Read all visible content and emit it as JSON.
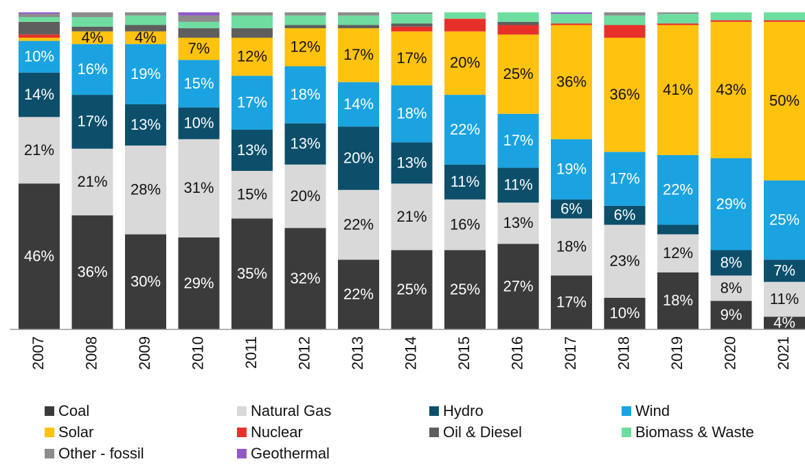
{
  "chart_data": {
    "type": "stacked_bar",
    "categories": [
      "2007",
      "2008",
      "2009",
      "2010",
      "2011",
      "2012",
      "2013",
      "2014",
      "2015",
      "2016",
      "2017",
      "2018",
      "2019",
      "2020",
      "2021"
    ],
    "ylim": [
      0,
      100
    ],
    "series": [
      {
        "name": "Coal",
        "color": "#3b3b3b",
        "values": [
          46,
          36,
          30,
          29,
          35,
          32,
          22,
          25,
          25,
          27,
          17,
          10,
          18,
          9,
          4
        ],
        "value_labels": [
          "46%",
          "36%",
          "30%",
          "29%",
          "35%",
          "32%",
          "22%",
          "25%",
          "25%",
          "27%",
          "17%",
          "10%",
          "18%",
          "9%",
          "4%"
        ]
      },
      {
        "name": "Natural Gas",
        "color": "#d9d9d9",
        "values": [
          21,
          21,
          28,
          31,
          15,
          20,
          22,
          21,
          16,
          13,
          18,
          23,
          12,
          8,
          11
        ],
        "value_labels": [
          "21%",
          "21%",
          "28%",
          "31%",
          "15%",
          "20%",
          "22%",
          "21%",
          "16%",
          "13%",
          "18%",
          "23%",
          "12%",
          "8%",
          "11%"
        ]
      },
      {
        "name": "Hydro",
        "color": "#0d4f6b",
        "values": [
          14,
          17,
          13,
          10,
          13,
          13,
          20,
          13,
          11,
          11,
          6,
          6,
          3,
          8,
          7
        ],
        "value_labels": [
          "14%",
          "17%",
          "13%",
          "10%",
          "13%",
          "13%",
          "20%",
          "13%",
          "11%",
          "11%",
          "6%",
          "6%",
          null,
          "8%",
          "7%"
        ]
      },
      {
        "name": "Wind",
        "color": "#1aa3e0",
        "values": [
          10,
          16,
          19,
          15,
          17,
          18,
          14,
          18,
          22,
          17,
          19,
          17,
          22,
          29,
          25
        ],
        "value_labels": [
          "10%",
          "16%",
          "19%",
          "15%",
          "17%",
          "18%",
          "14%",
          "18%",
          "22%",
          "17%",
          "19%",
          "17%",
          "22%",
          "29%",
          "25%"
        ]
      },
      {
        "name": "Solar",
        "color": "#ffc20e",
        "values": [
          1,
          4,
          4,
          7,
          12,
          12,
          17,
          17,
          20,
          25,
          36,
          36,
          41,
          43,
          50
        ],
        "value_labels": [
          null,
          "4%",
          "4%",
          "7%",
          "12%",
          "12%",
          "17%",
          "17%",
          "20%",
          "25%",
          "36%",
          "36%",
          "41%",
          "43%",
          "50%"
        ]
      },
      {
        "name": "Nuclear",
        "color": "#e8302a",
        "values": [
          1,
          0,
          0,
          0,
          0,
          0,
          0,
          1.5,
          4,
          3,
          0.5,
          4,
          0.5,
          0.5,
          0.5
        ]
      },
      {
        "name": "Oil & Diesel",
        "color": "#5e5e5e",
        "values": [
          4,
          1.5,
          2,
          3,
          3,
          1,
          1,
          1,
          0,
          1,
          0,
          0,
          0,
          0,
          0
        ]
      },
      {
        "name": "Biomass & Waste",
        "color": "#6fdda0",
        "values": [
          1.5,
          3,
          3,
          2,
          4,
          3,
          3,
          3,
          2,
          3,
          3,
          3,
          3,
          2.5,
          2.5
        ]
      },
      {
        "name": "Other - fossil",
        "color": "#8c8c8c",
        "values": [
          1,
          1.5,
          1,
          2,
          1,
          1,
          1,
          0.5,
          0,
          0,
          0,
          1,
          0.5,
          0,
          0
        ]
      },
      {
        "name": "Geothermal",
        "color": "#8f5cc6",
        "values": [
          0.5,
          0,
          0,
          1,
          0,
          0,
          0,
          0,
          0,
          0,
          0.5,
          0,
          0,
          0,
          0
        ]
      }
    ]
  }
}
